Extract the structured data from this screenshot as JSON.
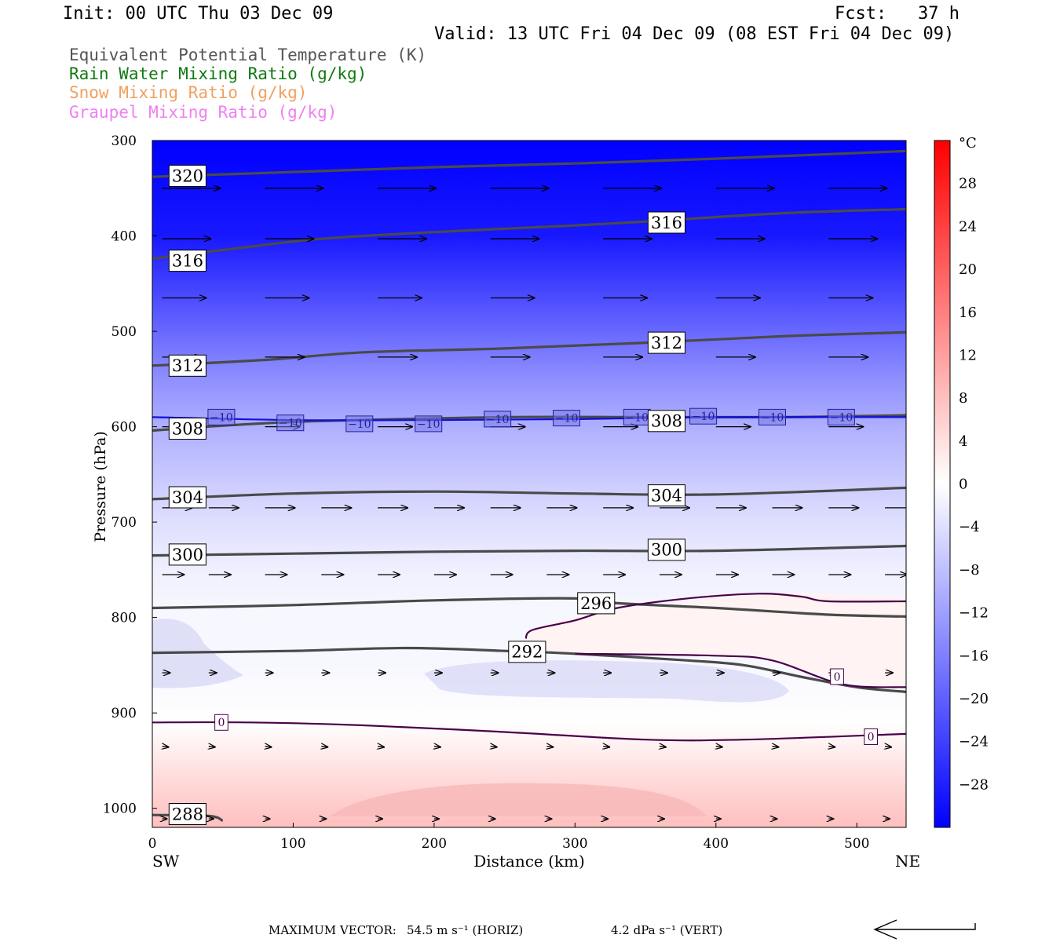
{
  "header": {
    "init": "Init: 00 UTC Thu 03 Dec 09",
    "fcst": "Fcst:   37 h",
    "valid": "Valid: 13 UTC Fri 04 Dec 09 (08 EST Fri 04 Dec 09)"
  },
  "legend": [
    {
      "label": "Equivalent Potential Temperature (K)",
      "color": "#555555"
    },
    {
      "label": "Rain Water Mixing Ratio (g/kg)",
      "color": "#107a10"
    },
    {
      "label": "Snow Mixing Ratio (g/kg)",
      "color": "#f0a060"
    },
    {
      "label": "Graupel Mixing Ratio (g/kg)",
      "color": "#f080f0"
    }
  ],
  "chart_data": {
    "type": "cross-section",
    "xlabel": "Distance (km)",
    "ylabel": "Pressure (hPa)",
    "x_ticks": [
      0,
      100,
      200,
      300,
      400,
      500
    ],
    "y_ticks": [
      300,
      400,
      500,
      600,
      700,
      800,
      900,
      1000
    ],
    "xlim": [
      0,
      535
    ],
    "ylim": [
      300,
      1020
    ],
    "y_inverted": true,
    "x_end_labels": {
      "left": "SW",
      "right": "NE"
    },
    "colorbar": {
      "unit": "°C",
      "tick_labels": [
        "28",
        "24",
        "20",
        "16",
        "12",
        "8",
        "4",
        "0",
        "−4",
        "−8",
        "−12",
        "−16",
        "−20",
        "−24",
        "−28"
      ],
      "tick_values": [
        28,
        24,
        20,
        16,
        12,
        8,
        4,
        0,
        -4,
        -8,
        -12,
        -16,
        -20,
        -24,
        -28
      ],
      "range": [
        -32,
        32
      ],
      "color_min": "#0000ff",
      "color_zero": "#ffffff",
      "color_max": "#ff0000"
    },
    "temperature_field": [
      {
        "p": 300,
        "t": -40
      },
      {
        "p": 400,
        "t": -29
      },
      {
        "p": 450,
        "t": -24
      },
      {
        "p": 500,
        "t": -19
      },
      {
        "p": 550,
        "t": -14
      },
      {
        "p": 600,
        "t": -10
      },
      {
        "p": 650,
        "t": -7
      },
      {
        "p": 700,
        "t": -4
      },
      {
        "p": 750,
        "t": -2
      },
      {
        "p": 790,
        "t": -1
      },
      {
        "p": 850,
        "t": -1
      },
      {
        "p": 910,
        "t": 0
      },
      {
        "p": 950,
        "t": 3
      },
      {
        "p": 990,
        "t": 6
      },
      {
        "p": 1020,
        "t": 8
      }
    ],
    "theta_e_contours": [
      {
        "label": "320",
        "points": [
          [
            0,
            338
          ],
          [
            100,
            333
          ],
          [
            200,
            328
          ],
          [
            300,
            324
          ],
          [
            400,
            319
          ],
          [
            535,
            311
          ]
        ],
        "label_at": [
          25,
          337
        ]
      },
      {
        "label": "316",
        "points": [
          [
            0,
            424
          ],
          [
            60,
            413
          ],
          [
            120,
            403
          ],
          [
            200,
            396
          ],
          [
            300,
            389
          ],
          [
            360,
            384
          ],
          [
            450,
            376
          ],
          [
            535,
            372
          ]
        ],
        "label_at": [
          25,
          426
        ],
        "label2_at": [
          365,
          386
        ]
      },
      {
        "label": "312",
        "points": [
          [
            0,
            536
          ],
          [
            80,
            530
          ],
          [
            150,
            522
          ],
          [
            250,
            518
          ],
          [
            350,
            512
          ],
          [
            450,
            505
          ],
          [
            535,
            501
          ]
        ],
        "label_at": [
          25,
          536
        ],
        "label2_at": [
          365,
          512
        ]
      },
      {
        "label": "308",
        "points": [
          [
            0,
            604
          ],
          [
            60,
            598
          ],
          [
            120,
            594
          ],
          [
            250,
            590
          ],
          [
            350,
            590
          ],
          [
            450,
            590
          ],
          [
            535,
            588
          ]
        ],
        "label_at": [
          25,
          602
        ],
        "label2_at": [
          365,
          594
        ]
      },
      {
        "label": "304",
        "points": [
          [
            0,
            676
          ],
          [
            100,
            670
          ],
          [
            200,
            668
          ],
          [
            300,
            670
          ],
          [
            400,
            671
          ],
          [
            535,
            664
          ]
        ],
        "label_at": [
          25,
          674
        ],
        "label2_at": [
          365,
          672
        ]
      },
      {
        "label": "300",
        "points": [
          [
            0,
            735
          ],
          [
            100,
            733
          ],
          [
            200,
            731
          ],
          [
            300,
            730
          ],
          [
            400,
            730
          ],
          [
            535,
            725
          ]
        ],
        "label_at": [
          25,
          734
        ],
        "label2_at": [
          365,
          729
        ]
      },
      {
        "label": "296",
        "points": [
          [
            0,
            790
          ],
          [
            100,
            787
          ],
          [
            200,
            782
          ],
          [
            300,
            780
          ],
          [
            330,
            785
          ],
          [
            400,
            790
          ],
          [
            480,
            797
          ],
          [
            535,
            799
          ]
        ],
        "label_at": [
          315,
          785
        ]
      },
      {
        "label": "292",
        "points": [
          [
            0,
            837
          ],
          [
            100,
            835
          ],
          [
            180,
            832
          ],
          [
            250,
            835
          ],
          [
            300,
            838
          ],
          [
            380,
            845
          ],
          [
            420,
            850
          ],
          [
            460,
            862
          ],
          [
            500,
            873
          ],
          [
            535,
            878
          ]
        ],
        "label_at": [
          266,
          836
        ]
      },
      {
        "label": "288",
        "points": [
          [
            0,
            1007
          ],
          [
            40,
            1008
          ],
          [
            50,
            1013
          ]
        ],
        "label_at": [
          25,
          1006
        ]
      }
    ],
    "temp_contours": [
      {
        "label": "−10",
        "points": [
          [
            0,
            590
          ],
          [
            100,
            593
          ],
          [
            200,
            593
          ],
          [
            300,
            592
          ],
          [
            400,
            590
          ],
          [
            535,
            590
          ]
        ],
        "labels_at": [
          [
            49,
            590
          ],
          [
            98,
            596
          ],
          [
            147,
            597
          ],
          [
            196,
            597
          ],
          [
            245,
            592
          ],
          [
            294,
            591
          ],
          [
            344,
            590
          ],
          [
            391,
            589
          ],
          [
            440,
            590
          ],
          [
            489,
            590
          ]
        ]
      },
      {
        "label": "0",
        "points": [
          [
            0,
            910
          ],
          [
            70,
            910
          ],
          [
            150,
            913
          ],
          [
            250,
            920
          ],
          [
            350,
            928
          ],
          [
            420,
            928
          ],
          [
            535,
            922
          ]
        ],
        "labels_at": [
          [
            49,
            910
          ],
          [
            510,
            925
          ]
        ]
      },
      {
        "label": "0",
        "points": [
          [
            265,
            822
          ],
          [
            270,
            813
          ],
          [
            300,
            803
          ],
          [
            330,
            790
          ],
          [
            380,
            780
          ],
          [
            430,
            775
          ],
          [
            460,
            778
          ],
          [
            480,
            783
          ],
          [
            535,
            783
          ]
        ],
        "labels_at": []
      },
      {
        "label": "0",
        "points": [
          [
            300,
            838
          ],
          [
            400,
            840
          ],
          [
            440,
            845
          ],
          [
            490,
            870
          ],
          [
            535,
            873
          ]
        ],
        "labels_at": [
          [
            486,
            862
          ]
        ]
      }
    ],
    "wind_vectors": [
      {
        "p": 350,
        "dx": 74,
        "dy": 0
      },
      {
        "p": 403,
        "dx": 62,
        "dy": 0
      },
      {
        "p": 465,
        "dx": 56,
        "dy": 0
      },
      {
        "p": 527,
        "dx": 50,
        "dy": 0
      },
      {
        "p": 600,
        "dx": 44,
        "dy": 0
      },
      {
        "p": 685,
        "dx": 38,
        "dy": 0
      },
      {
        "p": 755,
        "dx": 28,
        "dy": 0
      },
      {
        "p": 858,
        "dx": 10,
        "dy": 0
      },
      {
        "p": 935,
        "dx": 8,
        "dy": 1
      },
      {
        "p": 1011,
        "dx": 6,
        "dy": 0
      }
    ],
    "footer": {
      "label": "MAXIMUM VECTOR:",
      "horiz": "54.5 m s⁻¹ (HORIZ)",
      "vert": "4.2 dPa s⁻¹ (VERT)"
    }
  }
}
